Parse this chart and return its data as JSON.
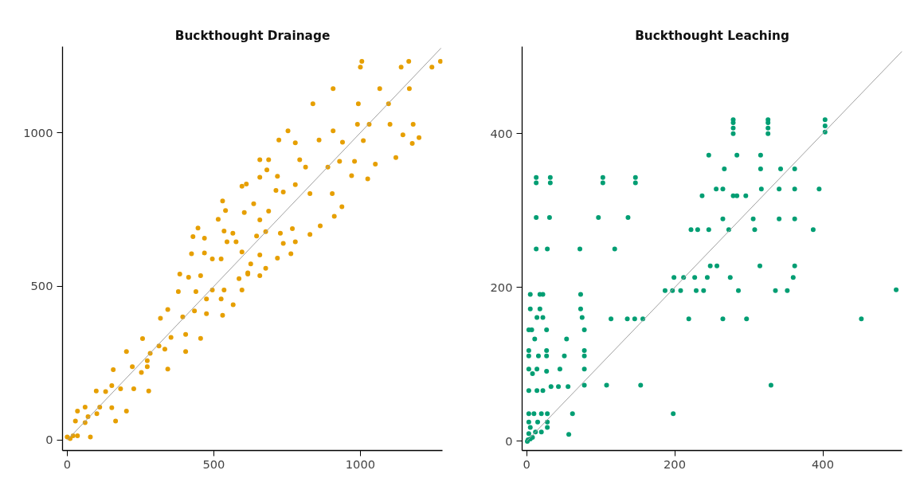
{
  "chart_data": [
    {
      "type": "scatter",
      "title": "Buckthought Drainage",
      "xlim": [
        -16,
        1280
      ],
      "ylim": [
        -34,
        1280
      ],
      "xticks": [
        0,
        500,
        1000
      ],
      "yticks": [
        0,
        500,
        1000
      ],
      "grid": false,
      "series": [
        {
          "color": "#e69f00",
          "marker": "circle",
          "x": [
            1000,
            1005,
            1139,
            1165,
            1244,
            1273,
            907,
            1066,
            1167,
            838,
            993,
            1096,
            753,
            722,
            778,
            907,
            990,
            1030,
            1101,
            1180,
            1200,
            1177,
            1145,
            859,
            939,
            1010,
            657,
            687,
            681,
            657,
            717,
            793,
            813,
            889,
            929,
            980,
            1051,
            1121,
            1025,
            970,
            596,
            611,
            530,
            540,
            515,
            604,
            636,
            712,
            737,
            778,
            828,
            904,
            911,
            937,
            863,
            446,
            429,
            468,
            424,
            468,
            495,
            525,
            535,
            565,
            545,
            576,
            596,
            657,
            687,
            646,
            677,
            727,
            768,
            828,
            737,
            778,
            717,
            763,
            657,
            677,
            657,
            616,
            626,
            384,
            414,
            455,
            439,
            379,
            495,
            535,
            596,
            475,
            525,
            566,
            318,
            343,
            394,
            434,
            475,
            530,
            586,
            616,
            404,
            354,
            313,
            257,
            455,
            404,
            333,
            283,
            157,
            202,
            222,
            273,
            343,
            253,
            273,
            99,
            131,
            182,
            227,
            278,
            152,
            35,
            61,
            111,
            152,
            202,
            28,
            71,
            101,
            165,
            61,
            0,
            20,
            35,
            79,
            10
          ],
          "values": [
            1213,
            1232,
            1213,
            1232,
            1213,
            1232,
            1143,
            1143,
            1143,
            1094,
            1094,
            1094,
            1006,
            976,
            967,
            1006,
            1027,
            1027,
            1027,
            1027,
            984,
            965,
            993,
            976,
            969,
            974,
            912,
            912,
            879,
            855,
            858,
            912,
            888,
            888,
            907,
            907,
            898,
            919,
            850,
            860,
            826,
            833,
            778,
            747,
            718,
            740,
            769,
            812,
            807,
            831,
            802,
            802,
            728,
            759,
            697,
            690,
            662,
            657,
            606,
            609,
            589,
            589,
            680,
            673,
            645,
            645,
            612,
            716,
            745,
            664,
            678,
            673,
            688,
            669,
            640,
            645,
            592,
            606,
            602,
            559,
            535,
            544,
            573,
            540,
            530,
            535,
            483,
            483,
            488,
            488,
            488,
            459,
            459,
            440,
            396,
            425,
            401,
            420,
            411,
            406,
            525,
            540,
            344,
            334,
            306,
            330,
            331,
            288,
            296,
            282,
            229,
            288,
            239,
            239,
            231,
            220,
            258,
            160,
            158,
            167,
            167,
            160,
            177,
            94,
            107,
            107,
            105,
            94,
            62,
            76,
            86,
            62,
            57,
            10,
            14,
            14,
            10,
            5
          ]
        },
        {
          "type": "line",
          "color": "#a0a0a0",
          "x": [
            0,
            1275
          ],
          "values": [
            0,
            1275
          ]
        }
      ]
    },
    {
      "type": "scatter",
      "title": "Buckthought Leaching",
      "xlim": [
        -6,
        507
      ],
      "ylim": [
        -12,
        513
      ],
      "xticks": [
        0,
        200,
        400
      ],
      "yticks": [
        0,
        200,
        400
      ],
      "grid": false,
      "series": [
        {
          "color": "#009e73",
          "marker": "circle",
          "x": [
            279,
            279,
            279,
            279,
            326,
            326,
            326,
            326,
            403,
            403,
            403,
            246,
            284,
            316,
            267,
            316,
            343,
            362,
            13,
            32,
            103,
            147,
            13,
            32,
            103,
            147,
            256,
            265,
            317,
            341,
            362,
            395,
            237,
            279,
            284,
            296,
            13,
            31,
            97,
            137,
            265,
            306,
            341,
            362,
            222,
            231,
            246,
            273,
            308,
            387,
            13,
            28,
            72,
            119,
            248,
            257,
            315,
            362,
            199,
            212,
            227,
            244,
            275,
            360,
            187,
            197,
            208,
            229,
            239,
            286,
            336,
            352,
            499,
            5,
            18,
            22,
            73,
            5,
            18,
            73,
            14,
            22,
            75,
            114,
            136,
            146,
            157,
            219,
            265,
            297,
            452,
            3,
            7,
            27,
            78,
            11,
            54,
            3,
            27,
            78,
            3,
            16,
            27,
            51,
            78,
            3,
            14,
            45,
            78,
            8,
            27,
            78,
            108,
            154,
            330,
            33,
            43,
            56,
            3,
            14,
            22,
            62,
            198,
            3,
            10,
            20,
            28,
            3,
            28,
            15,
            5,
            28,
            20,
            3,
            8,
            2,
            1,
            5,
            12,
            57
          ],
          "values": [
            400,
            407,
            414,
            418,
            400,
            407,
            414,
            418,
            402,
            410,
            418,
            372,
            372,
            372,
            354,
            354,
            354,
            354,
            343,
            343,
            343,
            343,
            336,
            336,
            336,
            336,
            328,
            328,
            328,
            328,
            328,
            328,
            319,
            319,
            319,
            319,
            291,
            291,
            291,
            291,
            289,
            289,
            289,
            289,
            275,
            275,
            275,
            275,
            275,
            275,
            250,
            250,
            250,
            250,
            228,
            228,
            228,
            228,
            213,
            213,
            213,
            213,
            213,
            213,
            196,
            196,
            196,
            196,
            196,
            196,
            196,
            196,
            197,
            191,
            191,
            191,
            191,
            172,
            172,
            172,
            161,
            161,
            161,
            159,
            159,
            159,
            159,
            159,
            159,
            159,
            159,
            145,
            145,
            145,
            145,
            133,
            133,
            118,
            118,
            118,
            111,
            111,
            111,
            111,
            111,
            94,
            94,
            94,
            94,
            88,
            91,
            73,
            73,
            73,
            73,
            71,
            71,
            71,
            66,
            66,
            66,
            36,
            36,
            36,
            36,
            36,
            36,
            25,
            25,
            25,
            18,
            18,
            12,
            10,
            5,
            2,
            0,
            3,
            12,
            9
          ]
        },
        {
          "type": "line",
          "color": "#a0a0a0",
          "x": [
            0,
            507
          ],
          "values": [
            0,
            507
          ]
        }
      ]
    }
  ]
}
